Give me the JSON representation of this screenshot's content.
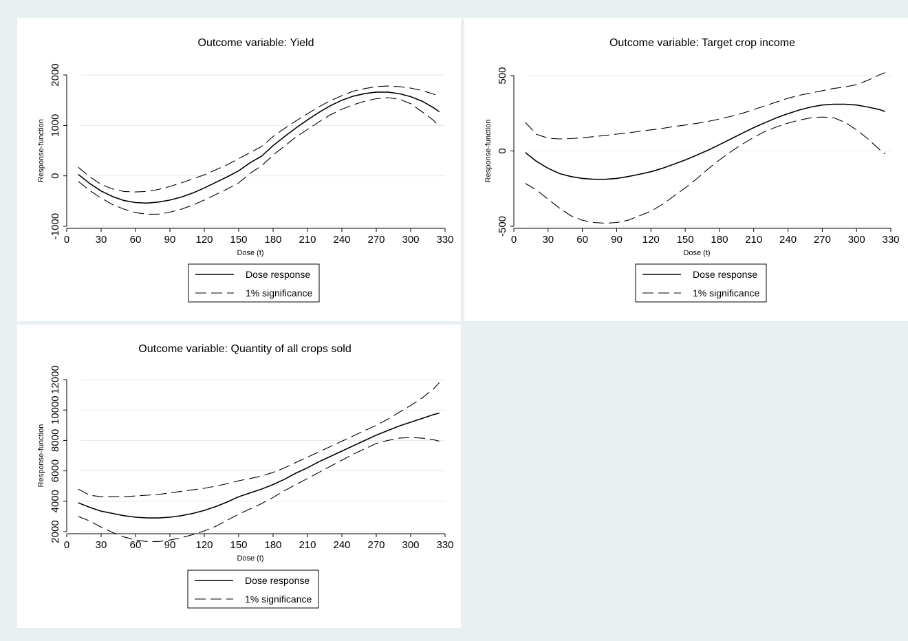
{
  "chart_data": [
    {
      "type": "line",
      "title": "Outcome variable: Yield",
      "xlabel": "Dose (t)",
      "ylabel": "Response-function",
      "xlim": [
        0,
        330
      ],
      "ylim": [
        -1000,
        2000
      ],
      "xticks": [
        0,
        30,
        60,
        90,
        120,
        150,
        180,
        210,
        240,
        270,
        300,
        330
      ],
      "yticks": [
        -1000,
        0,
        1000,
        2000
      ],
      "grid": true,
      "legend_position": "bottom",
      "x": [
        10,
        20,
        30,
        40,
        50,
        60,
        70,
        80,
        90,
        100,
        110,
        120,
        130,
        140,
        150,
        160,
        170,
        180,
        190,
        200,
        210,
        220,
        230,
        240,
        250,
        260,
        270,
        280,
        290,
        300,
        310,
        320,
        325
      ],
      "series": [
        {
          "name": "Dose response",
          "style": "solid",
          "values": [
            30,
            -150,
            -300,
            -410,
            -490,
            -530,
            -540,
            -520,
            -480,
            -420,
            -340,
            -240,
            -130,
            -20,
            100,
            260,
            390,
            600,
            780,
            950,
            1110,
            1260,
            1390,
            1500,
            1580,
            1630,
            1660,
            1660,
            1630,
            1570,
            1480,
            1350,
            1270
          ]
        },
        {
          "name": "1% significance",
          "style": "dash",
          "values": [
            170,
            -20,
            -170,
            -260,
            -310,
            -320,
            -310,
            -270,
            -210,
            -140,
            -60,
            20,
            120,
            220,
            340,
            460,
            580,
            780,
            940,
            1090,
            1230,
            1370,
            1490,
            1590,
            1680,
            1730,
            1770,
            1780,
            1770,
            1740,
            1690,
            1620,
            1580
          ]
        },
        {
          "name": "",
          "style": "dash",
          "values": [
            -110,
            -290,
            -440,
            -570,
            -660,
            -730,
            -760,
            -760,
            -720,
            -660,
            -580,
            -480,
            -370,
            -260,
            -140,
            50,
            200,
            410,
            590,
            770,
            920,
            1070,
            1210,
            1320,
            1410,
            1480,
            1530,
            1550,
            1520,
            1430,
            1270,
            1100,
            980
          ]
        }
      ],
      "legend": [
        "Dose response",
        "1% significance"
      ]
    },
    {
      "type": "line",
      "title": "Outcome variable: Target crop income",
      "xlabel": "Dose (t)",
      "ylabel": "Response-function",
      "xlim": [
        0,
        330
      ],
      "ylim": [
        -500,
        500
      ],
      "xticks": [
        0,
        30,
        60,
        90,
        120,
        150,
        180,
        210,
        240,
        270,
        300,
        330
      ],
      "yticks": [
        -500,
        0,
        500
      ],
      "grid": true,
      "legend_position": "bottom",
      "x": [
        10,
        20,
        30,
        40,
        50,
        60,
        70,
        80,
        90,
        100,
        110,
        120,
        130,
        140,
        150,
        160,
        170,
        180,
        190,
        200,
        210,
        220,
        230,
        240,
        250,
        260,
        270,
        280,
        290,
        300,
        310,
        320,
        325
      ],
      "series": [
        {
          "name": "Dose response",
          "style": "solid",
          "values": [
            -10,
            -70,
            -115,
            -150,
            -170,
            -182,
            -188,
            -188,
            -182,
            -170,
            -155,
            -138,
            -115,
            -88,
            -60,
            -28,
            5,
            42,
            80,
            118,
            155,
            188,
            220,
            248,
            272,
            292,
            305,
            310,
            310,
            305,
            292,
            275,
            262
          ]
        },
        {
          "name": "1% significance",
          "style": "dash",
          "values": [
            190,
            110,
            85,
            80,
            82,
            88,
            95,
            103,
            112,
            120,
            130,
            140,
            150,
            162,
            172,
            183,
            196,
            212,
            230,
            250,
            275,
            300,
            325,
            350,
            370,
            385,
            400,
            415,
            425,
            440,
            470,
            505,
            520
          ]
        },
        {
          "name": "",
          "style": "dash",
          "values": [
            -215,
            -260,
            -320,
            -380,
            -430,
            -460,
            -475,
            -480,
            -475,
            -460,
            -430,
            -400,
            -355,
            -300,
            -245,
            -185,
            -120,
            -60,
            -5,
            45,
            90,
            130,
            160,
            185,
            205,
            220,
            225,
            220,
            190,
            140,
            80,
            10,
            -20
          ]
        }
      ],
      "legend": [
        "Dose response",
        "1% significance"
      ]
    },
    {
      "type": "line",
      "title": "Outcome variable: Quantity of all crops sold",
      "xlabel": "Dose (t)",
      "ylabel": "Response-function",
      "xlim": [
        0,
        330
      ],
      "ylim": [
        2000,
        12000
      ],
      "xticks": [
        0,
        30,
        60,
        90,
        120,
        150,
        180,
        210,
        240,
        270,
        300,
        330
      ],
      "yticks": [
        2000,
        4000,
        6000,
        8000,
        10000,
        12000
      ],
      "grid": true,
      "legend_position": "bottom",
      "x": [
        10,
        20,
        30,
        40,
        50,
        60,
        70,
        80,
        90,
        100,
        110,
        120,
        130,
        140,
        150,
        160,
        170,
        180,
        190,
        200,
        210,
        220,
        230,
        240,
        250,
        260,
        270,
        280,
        290,
        300,
        310,
        320,
        325
      ],
      "series": [
        {
          "name": "Dose response",
          "style": "solid",
          "values": [
            3900,
            3600,
            3350,
            3200,
            3050,
            2950,
            2900,
            2900,
            2950,
            3050,
            3200,
            3400,
            3650,
            3950,
            4300,
            4550,
            4800,
            5100,
            5450,
            5850,
            6200,
            6600,
            6950,
            7300,
            7650,
            8000,
            8350,
            8650,
            8950,
            9200,
            9450,
            9700,
            9800
          ]
        },
        {
          "name": "1% significance",
          "style": "dash",
          "values": [
            4800,
            4400,
            4300,
            4300,
            4300,
            4350,
            4400,
            4450,
            4550,
            4650,
            4750,
            4850,
            5000,
            5150,
            5350,
            5500,
            5650,
            5900,
            6200,
            6550,
            6900,
            7250,
            7600,
            7950,
            8300,
            8650,
            9000,
            9400,
            9850,
            10300,
            10800,
            11400,
            11800
          ]
        },
        {
          "name": "",
          "style": "dash",
          "values": [
            3000,
            2700,
            2300,
            1950,
            1650,
            1450,
            1350,
            1350,
            1450,
            1600,
            1800,
            2050,
            2350,
            2750,
            3150,
            3500,
            3850,
            4250,
            4700,
            5100,
            5500,
            5900,
            6300,
            6700,
            7100,
            7450,
            7800,
            8000,
            8150,
            8200,
            8150,
            8050,
            7950
          ]
        }
      ],
      "legend": [
        "Dose response",
        "1% significance"
      ]
    }
  ]
}
